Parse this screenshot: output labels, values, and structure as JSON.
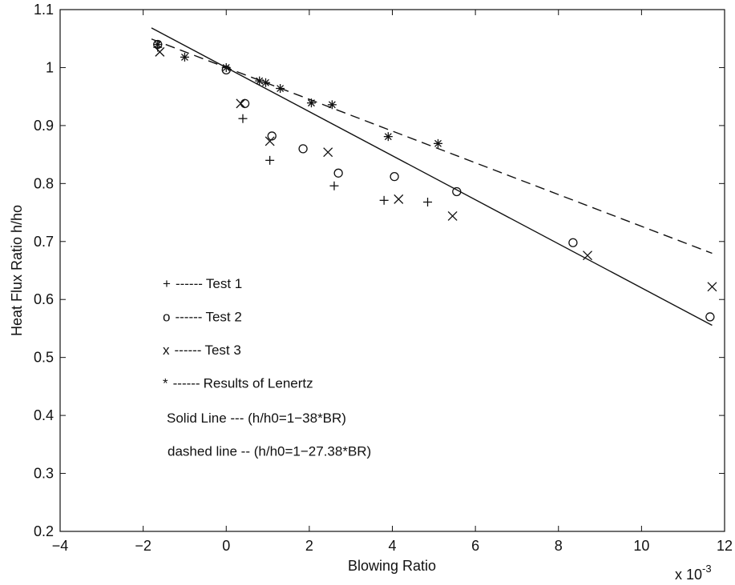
{
  "chart_data": {
    "type": "scatter",
    "title": "",
    "xlabel": "Blowing Ratio",
    "ylabel": "Heat Flux Ratio h/ho",
    "x_multiplier_label": "x 10",
    "x_multiplier_exponent": "-3",
    "xlim": [
      -4,
      12
    ],
    "ylim": [
      0.2,
      1.1
    ],
    "x_ticks": [
      -4,
      -2,
      0,
      2,
      4,
      6,
      8,
      10,
      12
    ],
    "x_tick_labels": [
      "−4",
      "−2",
      "0",
      "2",
      "4",
      "6",
      "8",
      "10",
      "12"
    ],
    "y_ticks": [
      0.2,
      0.3,
      0.4,
      0.5,
      0.6,
      0.7,
      0.8,
      0.9,
      1.0,
      1.1
    ],
    "y_tick_labels": [
      "0.2",
      "0.3",
      "0.4",
      "0.5",
      "0.6",
      "0.7",
      "0.8",
      "0.9",
      "1",
      "1.1"
    ],
    "grid": false,
    "legend_position": "lower-left",
    "series": [
      {
        "name": "Test 1",
        "marker": "plus",
        "points": [
          [
            -1.65,
            1.035
          ],
          [
            0.4,
            0.912
          ],
          [
            1.05,
            0.84
          ],
          [
            2.6,
            0.796
          ],
          [
            3.8,
            0.771
          ],
          [
            4.85,
            0.768
          ]
        ]
      },
      {
        "name": "Test 2",
        "marker": "circle",
        "points": [
          [
            -1.65,
            1.04
          ],
          [
            0.0,
            0.996
          ],
          [
            0.45,
            0.938
          ],
          [
            1.1,
            0.882
          ],
          [
            1.85,
            0.86
          ],
          [
            2.7,
            0.818
          ],
          [
            4.05,
            0.812
          ],
          [
            5.55,
            0.786
          ],
          [
            8.35,
            0.698
          ],
          [
            11.65,
            0.57
          ]
        ]
      },
      {
        "name": "Test 3",
        "marker": "x",
        "points": [
          [
            -1.6,
            1.027
          ],
          [
            0.35,
            0.938
          ],
          [
            1.05,
            0.873
          ],
          [
            2.45,
            0.854
          ],
          [
            4.15,
            0.773
          ],
          [
            5.45,
            0.744
          ],
          [
            8.7,
            0.676
          ],
          [
            11.7,
            0.622
          ]
        ]
      },
      {
        "name": "Results of Lenertz",
        "marker": "star",
        "points": [
          [
            -1.65,
            1.04
          ],
          [
            -1.0,
            1.018
          ],
          [
            0.0,
            1.0
          ],
          [
            0.8,
            0.977
          ],
          [
            0.95,
            0.974
          ],
          [
            1.3,
            0.964
          ],
          [
            2.05,
            0.939
          ],
          [
            2.55,
            0.936
          ],
          [
            3.9,
            0.881
          ],
          [
            5.1,
            0.869
          ]
        ]
      }
    ],
    "lines": [
      {
        "style": "solid",
        "equation_label": "Solid Line --- (h/h0=1−38*BR)",
        "x_start": -1.8,
        "x_end": 11.7,
        "y_intercept": 1.0,
        "slope_per_unit": -0.038
      },
      {
        "style": "dashed",
        "equation_label": "dashed line -- (h/h0=1−27.38*BR)",
        "x_start": -1.8,
        "x_end": 11.7,
        "y_intercept": 1.0,
        "slope_per_unit": -0.02738
      }
    ],
    "legend": [
      {
        "symbol": "+",
        "dashes": "------",
        "label": "Test 1"
      },
      {
        "symbol": "o",
        "dashes": "------",
        "label": "Test 2"
      },
      {
        "symbol": "x",
        "dashes": "------",
        "label": "Test 3"
      },
      {
        "symbol": "*",
        "dashes": "------",
        "label": "Results of Lenertz"
      }
    ],
    "legend_notes": [
      "Solid Line --- (h/h0=1−38*BR)",
      "dashed line -- (h/h0=1−27.38*BR)"
    ]
  }
}
